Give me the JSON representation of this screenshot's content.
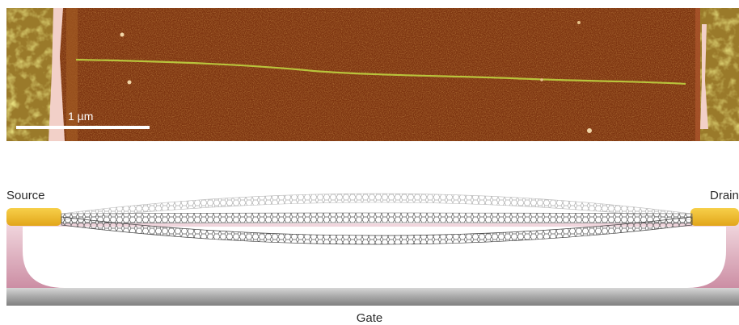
{
  "afm": {
    "scale_bar_label": "1 µm",
    "colors": {
      "background": "#8a3a12",
      "electrode": "#b8a23a",
      "nanotube": "#b9c43c",
      "trench_edge": "#f0c8c0"
    }
  },
  "device": {
    "source_label": "Source",
    "drain_label": "Drain",
    "gate_label": "Gate",
    "colors": {
      "electrode": "#f0be2a",
      "substrate": "#d8a6b4",
      "gate": "#9c9c9c",
      "nanotube": "#555555"
    }
  }
}
